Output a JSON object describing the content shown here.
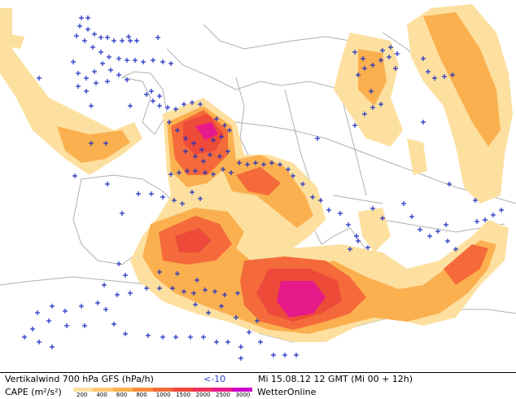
{
  "caption": {
    "line1_left": "Vertikalwind 700 hPa GFS (hPa/h)",
    "line1_threshold": "<-10",
    "line1_time": "Mi 15.08.12 12 GMT (Mi 00 + 12h)",
    "line2_label": "CAPE (m²/s²)",
    "brand": "WetterOnline"
  },
  "cape_scale": {
    "ticks": [
      "200",
      "400",
      "600",
      "800",
      "1000",
      "1500",
      "2000",
      "2500",
      "3000"
    ],
    "colors": [
      "#fde0a0",
      "#fdc870",
      "#fbb050",
      "#f98c3c",
      "#f46a3a",
      "#ee4a3a",
      "#ee2f5a",
      "#e61a8a",
      "#cc00cc"
    ]
  },
  "colors": {
    "coast": "#b0b0b0",
    "vertical_wind_marker": "#2030c0",
    "threshold_text": "#3040d0"
  }
}
